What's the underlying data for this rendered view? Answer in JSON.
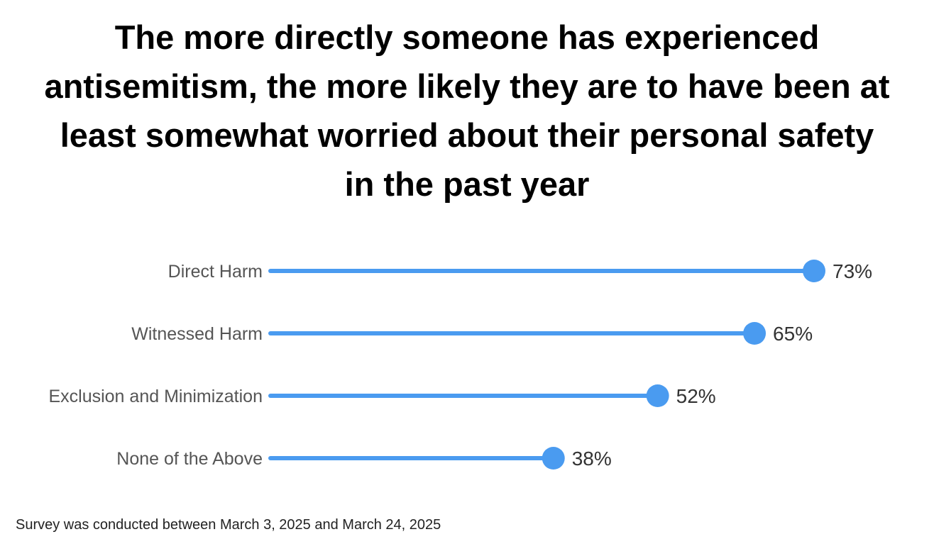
{
  "chart_data": {
    "type": "lollipop",
    "title": "The more directly someone has experienced antisemitism, the more likely they are to have been at least somewhat worried about their personal safety in the past year",
    "categories": [
      "Direct Harm",
      "Witnessed Harm",
      "Exclusion and Minimization",
      "None of the Above"
    ],
    "values": [
      73,
      65,
      52,
      38
    ],
    "value_labels": [
      "73%",
      "65%",
      "52%",
      "38%"
    ],
    "xlim": [
      0,
      73
    ],
    "grid": false,
    "legend": "none",
    "color": "#4a9bf0"
  },
  "footer": "Survey was conducted between March 3, 2025 and March 24, 2025"
}
